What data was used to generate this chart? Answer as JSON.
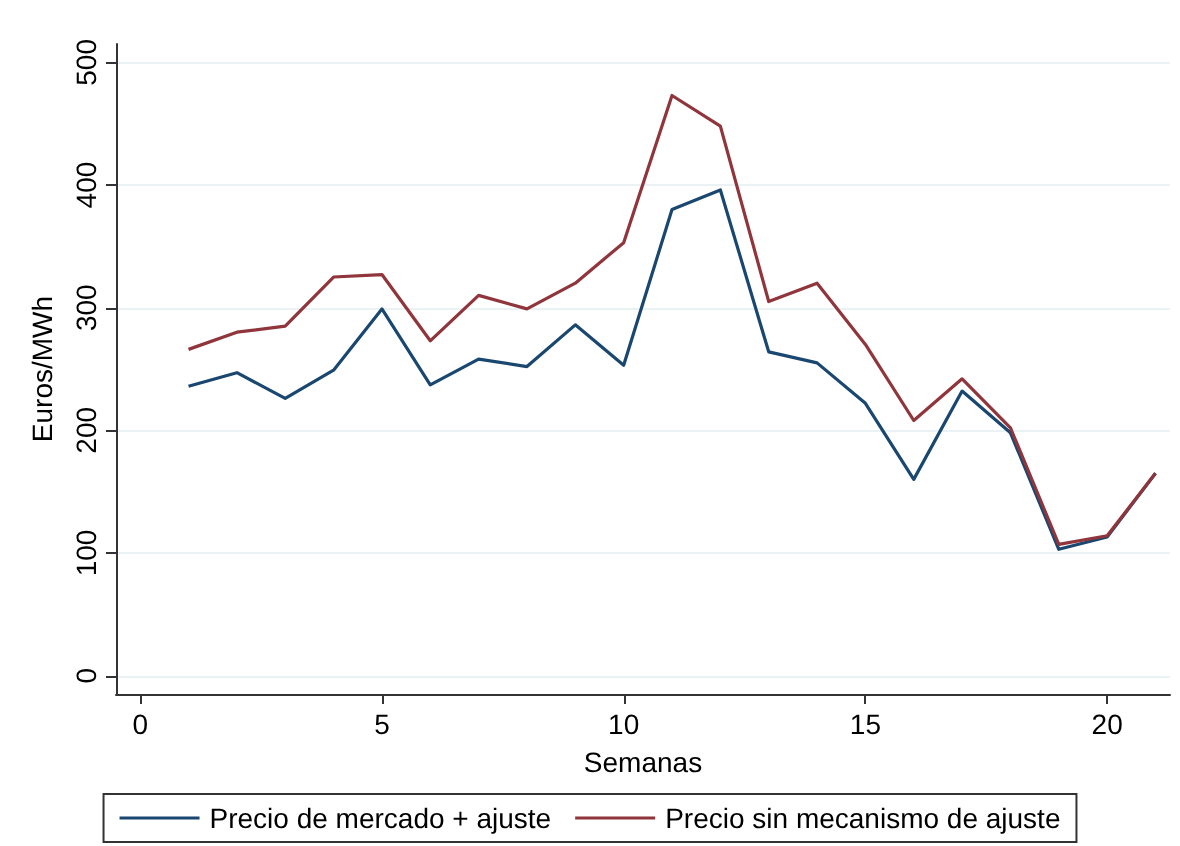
{
  "chart_data": {
    "type": "line",
    "xlabel": "Semanas",
    "ylabel": "Euros/MWh",
    "x": [
      1,
      2,
      3,
      4,
      5,
      6,
      7,
      8,
      9,
      10,
      11,
      12,
      13,
      14,
      15,
      16,
      17,
      18,
      19,
      20,
      21
    ],
    "series": [
      {
        "name": "Precio de mercado + ajuste",
        "color": "#1a476f",
        "values": [
          236,
          247,
          226,
          249,
          299,
          237,
          258,
          252,
          286,
          253,
          380,
          396,
          264,
          255,
          222,
          160,
          232,
          198,
          103,
          113,
          165
        ]
      },
      {
        "name": "Precio sin mecanismo de ajuste",
        "color": "#90353b",
        "values": [
          266,
          280,
          285,
          325,
          327,
          273,
          310,
          299,
          320,
          353,
          473,
          448,
          305,
          320,
          270,
          208,
          242,
          202,
          107,
          114,
          165
        ]
      }
    ],
    "xlim": [
      -0.5,
      21.3
    ],
    "xticks": [
      0,
      5,
      10,
      15,
      20
    ],
    "ylim": [
      -15,
      515
    ],
    "yticks": [
      0,
      100,
      200,
      300,
      400,
      500
    ],
    "grid": "y",
    "legend": "bottom",
    "marker": "none",
    "line_style": "solid"
  }
}
